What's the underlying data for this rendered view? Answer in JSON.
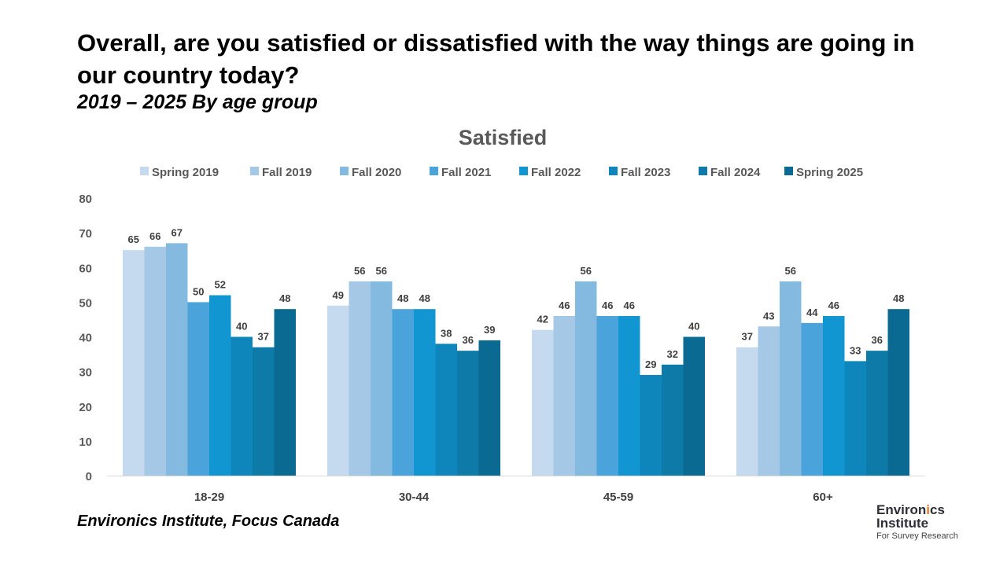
{
  "title": "Overall, are you satisfied or dissatisfied with the way things are going in our country today?",
  "subtitle": "2019 – 2025  By age group",
  "footer": "Environics Institute, Focus Canada",
  "logo": {
    "line1a": "Environ",
    "line1b": "i",
    "line1c": "cs",
    "line2": "Institute",
    "tagline": "For Survey Research",
    "accent": "#e87722"
  },
  "chart_data": {
    "type": "bar",
    "title": "Satisfied",
    "categories": [
      "18-29",
      "30-44",
      "45-59",
      "60+"
    ],
    "ylim": [
      0,
      80
    ],
    "yticks": [
      0,
      10,
      20,
      30,
      40,
      50,
      60,
      70,
      80
    ],
    "grid": false,
    "legend_position": "top",
    "series": [
      {
        "name": "Spring 2019",
        "color": "#c5daef",
        "values": [
          65,
          49,
          42,
          37
        ]
      },
      {
        "name": "Fall 2019",
        "color": "#a5c8e6",
        "values": [
          66,
          56,
          46,
          43
        ]
      },
      {
        "name": "Fall 2020",
        "color": "#84b9e0",
        "values": [
          67,
          56,
          56,
          56
        ]
      },
      {
        "name": "Fall 2021",
        "color": "#4aa3da",
        "values": [
          50,
          48,
          46,
          44
        ]
      },
      {
        "name": "Fall 2022",
        "color": "#1296d1",
        "values": [
          52,
          48,
          46,
          46
        ]
      },
      {
        "name": "Fall 2023",
        "color": "#0e86bc",
        "values": [
          40,
          38,
          29,
          33
        ]
      },
      {
        "name": "Fall 2024",
        "color": "#0d7aa8",
        "values": [
          37,
          36,
          32,
          36
        ]
      },
      {
        "name": "Spring 2025",
        "color": "#0b6a91",
        "values": [
          48,
          39,
          40,
          48
        ]
      }
    ]
  }
}
